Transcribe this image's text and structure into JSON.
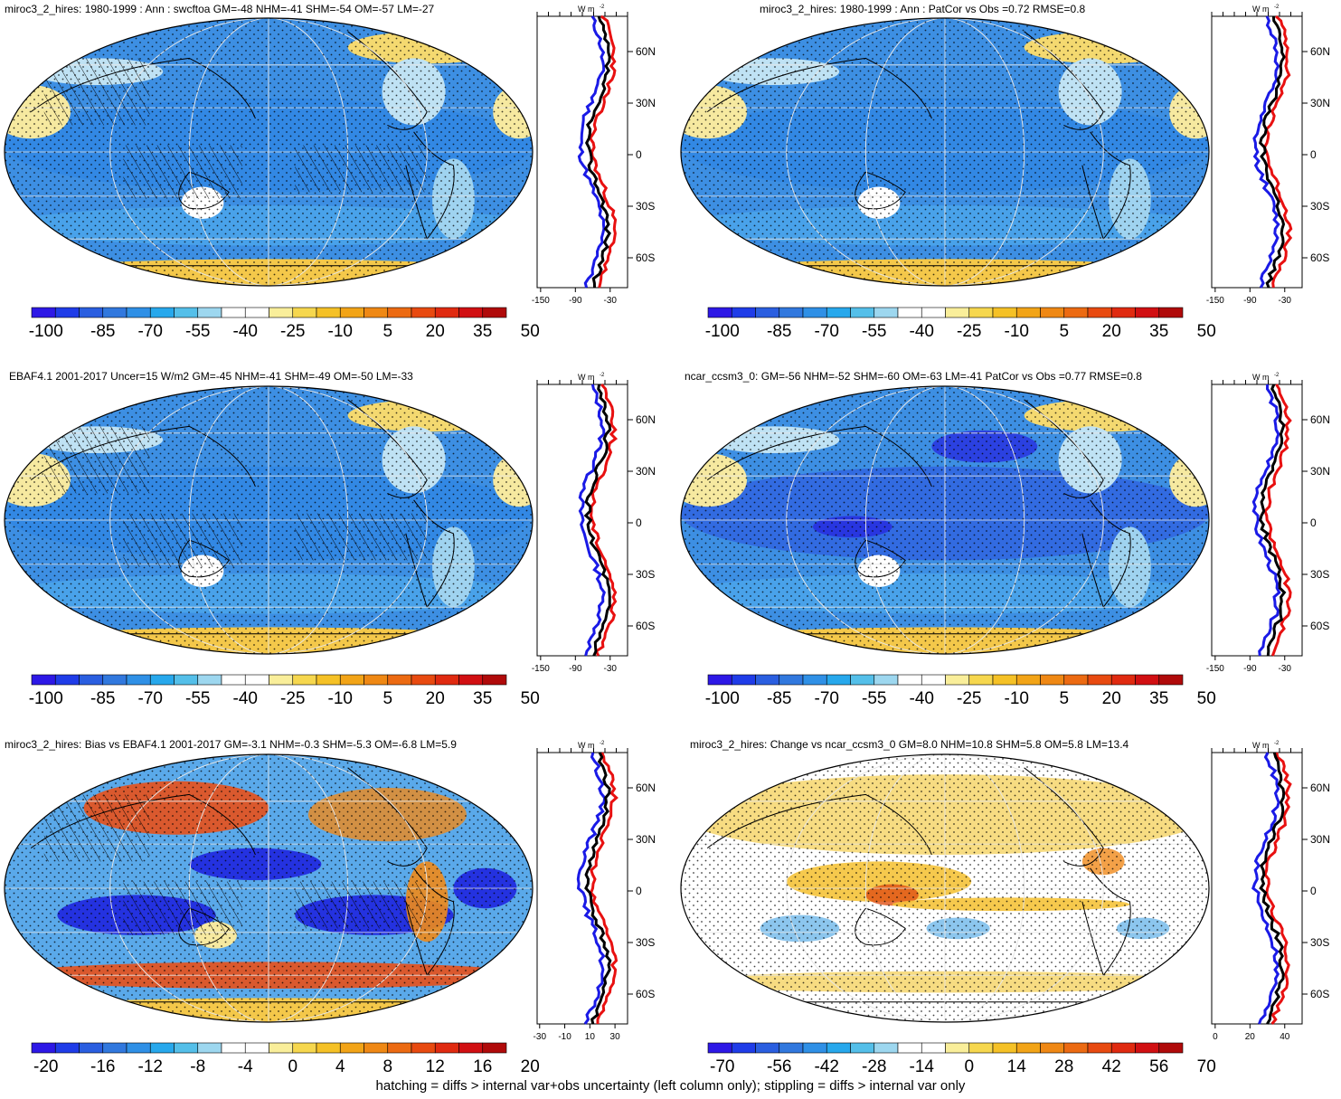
{
  "panels": [
    {
      "id": "p1",
      "title": "miroc3_2_hires: 1980-1999 : Ann : swcftoa GM=-48 NHM=-41 SHM=-54 OM=-57 LM=-27",
      "colorbar": [
        "-100",
        "-85",
        "-70",
        "-55",
        "-40",
        "-25",
        "-10",
        "5",
        "20",
        "35",
        "50"
      ],
      "profile_xticks": [
        "-150",
        "-90",
        "-30"
      ],
      "map_style": "mean",
      "hatch": true
    },
    {
      "id": "p2",
      "title": "miroc3_2_hires: 1980-1999 : Ann : PatCor vs Obs =0.72 RMSE=0.8",
      "colorbar": [
        "-100",
        "-85",
        "-70",
        "-55",
        "-40",
        "-25",
        "-10",
        "5",
        "20",
        "35",
        "50"
      ],
      "profile_xticks": [
        "-150",
        "-90",
        "-30"
      ],
      "map_style": "mean",
      "hatch": false
    },
    {
      "id": "p3",
      "title": "EBAF4.1 2001-2017 Uncer=15 W/m2 GM=-45 NHM=-41 SHM=-49 OM=-50 LM=-33",
      "colorbar": [
        "-100",
        "-85",
        "-70",
        "-55",
        "-40",
        "-25",
        "-10",
        "5",
        "20",
        "35",
        "50"
      ],
      "profile_xticks": [
        "-150",
        "-90",
        "-30"
      ],
      "map_style": "mean",
      "hatch": true
    },
    {
      "id": "p4",
      "title": "ncar_ccsm3_0: GM=-56 NHM=-52 SHM=-60 OM=-63 LM=-41 PatCor vs Obs =0.77 RMSE=0.8",
      "colorbar": [
        "-100",
        "-85",
        "-70",
        "-55",
        "-40",
        "-25",
        "-10",
        "5",
        "20",
        "35",
        "50"
      ],
      "profile_xticks": [
        "-150",
        "-90",
        "-30"
      ],
      "map_style": "mean2",
      "hatch": false
    },
    {
      "id": "p5",
      "title": "miroc3_2_hires: Bias vs EBAF4.1 2001-2017 GM=-3.1 NHM=-0.3 SHM=-5.3 OM=-6.8 LM=5.9",
      "colorbar": [
        "-20",
        "-16",
        "-12",
        "-8",
        "-4",
        "0",
        "4",
        "8",
        "12",
        "16",
        "20"
      ],
      "profile_xticks": [
        "-30",
        "-10",
        "10",
        "30"
      ],
      "map_style": "bias",
      "hatch": true
    },
    {
      "id": "p6",
      "title": "miroc3_2_hires: Change vs ncar_ccsm3_0 GM=8.0 NHM=10.8 SHM=5.8 OM=5.8 LM=13.4",
      "colorbar": [
        "-70",
        "-56",
        "-42",
        "-28",
        "-14",
        "0",
        "14",
        "28",
        "42",
        "56",
        "70"
      ],
      "profile_xticks": [
        "0",
        "20",
        "40"
      ],
      "map_style": "change",
      "hatch": false
    }
  ],
  "lat_labels": [
    "60N",
    "30N",
    "0",
    "30S",
    "60S"
  ],
  "unit_label": "W m",
  "unit_exp": "-2",
  "footer": "hatching = diffs > internal var+obs uncertainty (left column only); stippling = diffs > internal var only",
  "colors": {
    "palette": [
      "#2d18e6",
      "#1f3ce8",
      "#2a5ee0",
      "#3178de",
      "#2f90e6",
      "#27a8ec",
      "#54bfe9",
      "#9dd7ef",
      "#ffffff",
      "#ffffff",
      "#f9ee9a",
      "#f6d74e",
      "#f5c126",
      "#f2a417",
      "#ef8814",
      "#ec6a12",
      "#e84a10",
      "#e02a10",
      "#d10f12",
      "#b00a0a"
    ]
  }
}
